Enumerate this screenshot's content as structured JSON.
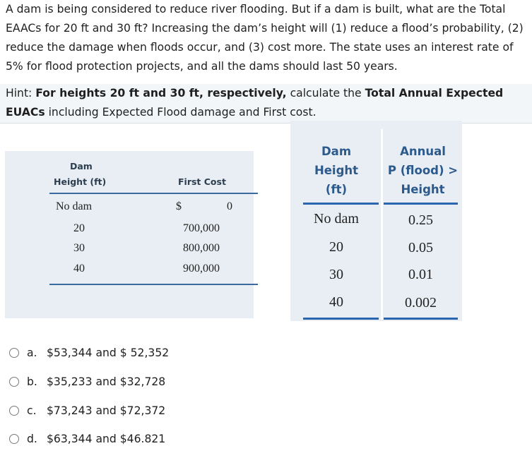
{
  "question": {
    "line1": "A dam is being considered to reduce river flooding. But if a dam is built, what are the Total",
    "line2": "EAACs for 20 ft and 30 ft? Increasing the dam’s height will (1) reduce a flood’s probability, (2)",
    "line3": "reduce the damage when floods occur, and (3) cost more. The state uses an interest rate of",
    "line4": "5% for flood protection projects, and all the dams should last 50 years."
  },
  "hint": {
    "prefix": "Hint: ",
    "bold1": "For heights 20 ft and 30 ft, respectively,",
    "mid": " calculate the ",
    "bold2": "Total Annual Expected",
    "bold3": "EUACs",
    "suffix": " including Expected Flood damage and First cost."
  },
  "table1": {
    "headers": {
      "height_line1": "Dam",
      "height_line2": "Height (ft)",
      "cost": "First Cost"
    },
    "rows": [
      {
        "height": "No dam",
        "cost_symbol": "$",
        "cost": "0"
      },
      {
        "height": "20",
        "cost": "700,000"
      },
      {
        "height": "30",
        "cost": "800,000"
      },
      {
        "height": "40",
        "cost": "900,000"
      }
    ]
  },
  "table2": {
    "headers": {
      "col1": [
        "Dam",
        "Height",
        "(ft)"
      ],
      "col2": [
        "Annual",
        "P (flood) >",
        "Height"
      ]
    },
    "rows": [
      {
        "height": "No dam",
        "prob": "0.25"
      },
      {
        "height": "20",
        "prob": "0.05"
      },
      {
        "height": "30",
        "prob": "0.01"
      },
      {
        "height": "40",
        "prob": "0.002"
      }
    ]
  },
  "options": [
    {
      "letter": "a.",
      "text": "$53,344  and $ 52,352"
    },
    {
      "letter": "b.",
      "text": "$35,233 and $32,728"
    },
    {
      "letter": "c.",
      "text": "$73,243 and $72,372"
    },
    {
      "letter": "d.",
      "text": "$63,344 and $46.821"
    }
  ]
}
